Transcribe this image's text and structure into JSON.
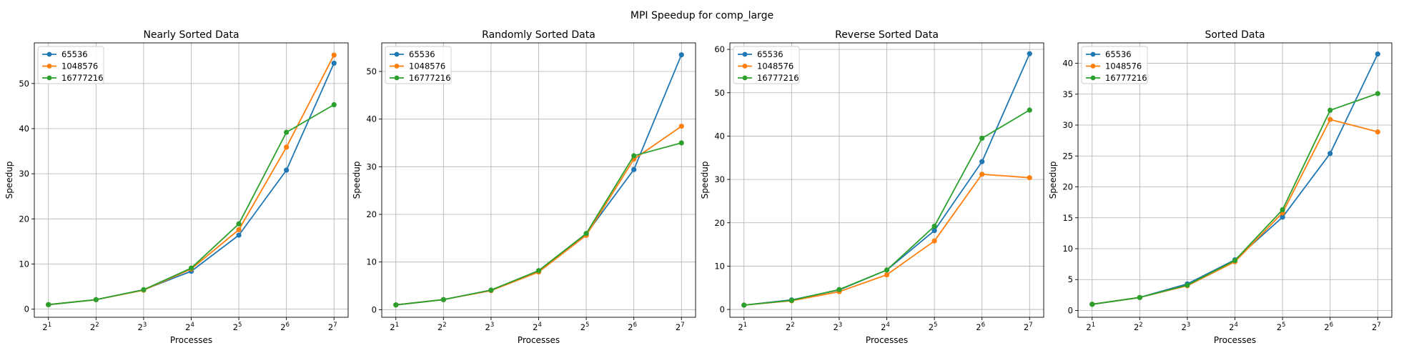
{
  "figure": {
    "title": "MPI Speedup for comp_large"
  },
  "colors": {
    "65536": "#1f77b4",
    "1048576": "#ff7f0e",
    "16777216": "#2ca02c",
    "grid": "#b0b0b0"
  },
  "chart_data": [
    {
      "type": "line",
      "title": "Nearly Sorted Data",
      "xlabel": "Processes",
      "ylabel": "Speedup",
      "x": [
        2,
        4,
        8,
        16,
        32,
        64,
        128
      ],
      "xscale": "log2",
      "x_tick_labels": [
        [
          "2",
          "1"
        ],
        [
          "2",
          "2"
        ],
        [
          "2",
          "3"
        ],
        [
          "2",
          "4"
        ],
        [
          "2",
          "5"
        ],
        [
          "2",
          "6"
        ],
        [
          "2",
          "7"
        ]
      ],
      "ylim": [
        -1.8,
        59
      ],
      "yticks": [
        0,
        10,
        20,
        30,
        40,
        50
      ],
      "grid": true,
      "legend": "upper-left",
      "series": [
        {
          "name": "65536",
          "values": [
            1.0,
            2.1,
            4.3,
            8.4,
            16.4,
            30.8,
            54.5
          ]
        },
        {
          "name": "1048576",
          "values": [
            1.0,
            2.1,
            4.2,
            8.9,
            17.6,
            35.9,
            56.3
          ]
        },
        {
          "name": "16777216",
          "values": [
            1.0,
            2.1,
            4.3,
            9.1,
            18.9,
            39.2,
            45.3
          ]
        }
      ]
    },
    {
      "type": "line",
      "title": "Randomly Sorted Data",
      "xlabel": "Processes",
      "ylabel": "Speedup",
      "x": [
        2,
        4,
        8,
        16,
        32,
        64,
        128
      ],
      "xscale": "log2",
      "x_tick_labels": [
        [
          "2",
          "1"
        ],
        [
          "2",
          "2"
        ],
        [
          "2",
          "3"
        ],
        [
          "2",
          "4"
        ],
        [
          "2",
          "5"
        ],
        [
          "2",
          "6"
        ],
        [
          "2",
          "7"
        ]
      ],
      "ylim": [
        -1.6,
        56
      ],
      "yticks": [
        0,
        10,
        20,
        30,
        40,
        50
      ],
      "grid": true,
      "legend": "upper-left",
      "series": [
        {
          "name": "65536",
          "values": [
            1.0,
            2.1,
            4.1,
            8.1,
            15.9,
            29.4,
            53.5
          ]
        },
        {
          "name": "1048576",
          "values": [
            1.0,
            2.1,
            4.0,
            7.9,
            15.6,
            31.6,
            38.5
          ]
        },
        {
          "name": "16777216",
          "values": [
            1.0,
            2.1,
            4.1,
            8.2,
            16.0,
            32.3,
            35.0
          ]
        }
      ]
    },
    {
      "type": "line",
      "title": "Reverse Sorted Data",
      "xlabel": "Processes",
      "ylabel": "Speedup",
      "x": [
        2,
        4,
        8,
        16,
        32,
        64,
        128
      ],
      "xscale": "log2",
      "x_tick_labels": [
        [
          "2",
          "1"
        ],
        [
          "2",
          "2"
        ],
        [
          "2",
          "3"
        ],
        [
          "2",
          "4"
        ],
        [
          "2",
          "5"
        ],
        [
          "2",
          "6"
        ],
        [
          "2",
          "7"
        ]
      ],
      "ylim": [
        -1.8,
        61.5
      ],
      "yticks": [
        0,
        10,
        20,
        30,
        40,
        50,
        60
      ],
      "grid": true,
      "legend": "upper-left",
      "series": [
        {
          "name": "65536",
          "values": [
            1.0,
            2.2,
            4.5,
            9.1,
            18.2,
            34.1,
            59.0
          ]
        },
        {
          "name": "1048576",
          "values": [
            1.0,
            2.0,
            4.1,
            8.0,
            15.8,
            31.2,
            30.4
          ]
        },
        {
          "name": "16777216",
          "values": [
            1.0,
            2.1,
            4.6,
            9.1,
            19.2,
            39.5,
            46.0
          ]
        }
      ]
    },
    {
      "type": "line",
      "title": "Sorted Data",
      "xlabel": "Processes",
      "ylabel": "Speedup",
      "x": [
        2,
        4,
        8,
        16,
        32,
        64,
        128
      ],
      "xscale": "log2",
      "x_tick_labels": [
        [
          "2",
          "1"
        ],
        [
          "2",
          "2"
        ],
        [
          "2",
          "3"
        ],
        [
          "2",
          "4"
        ],
        [
          "2",
          "5"
        ],
        [
          "2",
          "6"
        ],
        [
          "2",
          "7"
        ]
      ],
      "ylim": [
        -1.1,
        43.3
      ],
      "yticks": [
        0,
        5,
        10,
        15,
        20,
        25,
        30,
        35,
        40
      ],
      "grid": true,
      "legend": "upper-left",
      "series": [
        {
          "name": "65536",
          "values": [
            1.0,
            2.1,
            4.3,
            8.2,
            15.1,
            25.4,
            41.5
          ]
        },
        {
          "name": "1048576",
          "values": [
            1.0,
            2.1,
            4.0,
            7.9,
            15.8,
            30.9,
            28.9
          ]
        },
        {
          "name": "16777216",
          "values": [
            1.0,
            2.1,
            4.1,
            8.1,
            16.3,
            32.4,
            35.1
          ]
        }
      ]
    }
  ]
}
